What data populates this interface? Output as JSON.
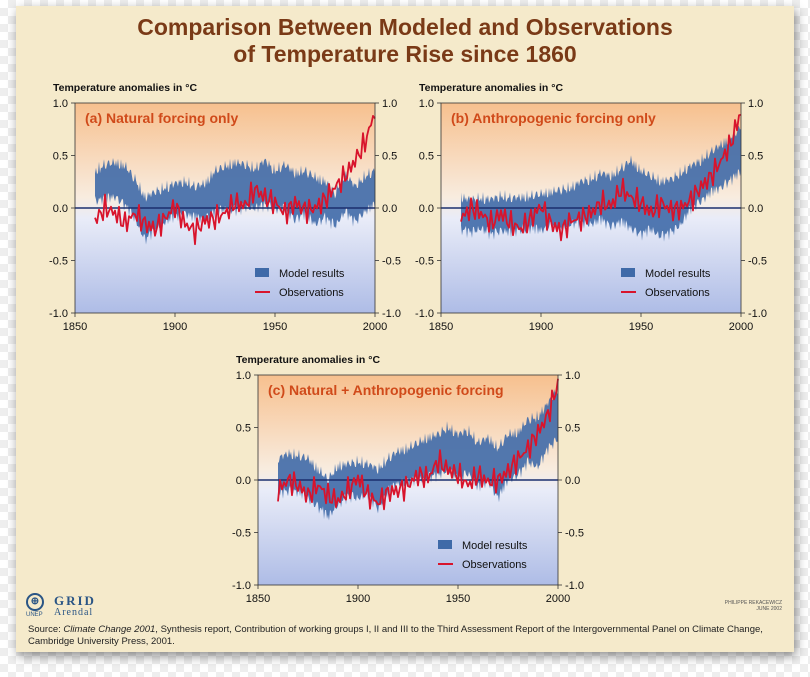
{
  "title_line1": "Comparison Between Modeled and Observations",
  "title_line2": "of Temperature Rise since 1860",
  "colors": {
    "card_bg": "#f5eacb",
    "title": "#7a3a17",
    "panel_title": "#d04a1a",
    "model": "#3f6aa8",
    "observations": "#d8142c",
    "zero_line": "#1b2f6e",
    "plot_top": "#f7c08e",
    "plot_bottom": "#aebce6"
  },
  "chart_data": [
    {
      "type": "area",
      "panel_title": "(a) Natural forcing only",
      "ylabel": "Temperature anomalies in °C",
      "xlim": [
        1850,
        2000
      ],
      "ylim": [
        -1.0,
        1.0
      ],
      "x_ticks": [
        "1850",
        "1900",
        "1950",
        "2000"
      ],
      "y_ticks": [
        "1.0",
        "0.5",
        "0.0",
        "-0.5",
        "-1.0"
      ],
      "legend": [
        "Model results",
        "Observations"
      ],
      "legend_position": "bottom-right",
      "series": [
        {
          "name": "Model results",
          "kind": "band",
          "x": [
            1860,
            1865,
            1870,
            1875,
            1880,
            1885,
            1890,
            1895,
            1900,
            1905,
            1910,
            1915,
            1920,
            1925,
            1930,
            1935,
            1940,
            1945,
            1950,
            1955,
            1960,
            1965,
            1970,
            1975,
            1980,
            1985,
            1990,
            1995,
            2000
          ],
          "lower": [
            0.12,
            0.14,
            0.16,
            0.08,
            -0.05,
            -0.25,
            -0.15,
            -0.08,
            -0.02,
            0.0,
            -0.04,
            -0.05,
            0.02,
            0.04,
            0.03,
            0.06,
            0.05,
            0.08,
            0.04,
            0.05,
            -0.06,
            0.0,
            -0.1,
            -0.04,
            -0.12,
            0.02,
            -0.08,
            0.02,
            0.08
          ],
          "upper": [
            0.3,
            0.36,
            0.38,
            0.35,
            0.22,
            0.05,
            0.1,
            0.14,
            0.18,
            0.2,
            0.15,
            0.18,
            0.3,
            0.34,
            0.38,
            0.36,
            0.32,
            0.4,
            0.3,
            0.36,
            0.28,
            0.3,
            0.24,
            0.2,
            0.08,
            0.28,
            0.15,
            0.25,
            0.3
          ]
        },
        {
          "name": "Observations",
          "kind": "line",
          "x": [
            1860,
            1865,
            1870,
            1875,
            1880,
            1885,
            1890,
            1895,
            1900,
            1905,
            1910,
            1915,
            1920,
            1925,
            1930,
            1935,
            1940,
            1945,
            1950,
            1955,
            1960,
            1965,
            1970,
            1975,
            1980,
            1985,
            1990,
            1995,
            2000
          ],
          "y": [
            -0.12,
            0.0,
            -0.05,
            -0.15,
            -0.05,
            -0.15,
            -0.2,
            -0.1,
            0.02,
            -0.15,
            -0.22,
            -0.12,
            -0.1,
            -0.05,
            0.05,
            0.02,
            0.18,
            0.1,
            0.05,
            -0.05,
            0.05,
            -0.02,
            0.0,
            0.08,
            0.2,
            0.3,
            0.45,
            0.62,
            0.92
          ]
        }
      ]
    },
    {
      "type": "area",
      "panel_title": "(b) Anthropogenic forcing only",
      "ylabel": "Temperature anomalies in °C",
      "xlim": [
        1850,
        2000
      ],
      "ylim": [
        -1.0,
        1.0
      ],
      "x_ticks": [
        "1850",
        "1900",
        "1950",
        "2000"
      ],
      "y_ticks": [
        "1.0",
        "0.5",
        "0.0",
        "-0.5",
        "-1.0"
      ],
      "legend": [
        "Model results",
        "Observations"
      ],
      "legend_position": "bottom-right",
      "series": [
        {
          "name": "Model results",
          "kind": "band",
          "x": [
            1860,
            1865,
            1870,
            1875,
            1880,
            1885,
            1890,
            1895,
            1900,
            1905,
            1910,
            1915,
            1920,
            1925,
            1930,
            1935,
            1940,
            1945,
            1950,
            1955,
            1960,
            1965,
            1970,
            1975,
            1980,
            1985,
            1990,
            1995,
            2000
          ],
          "lower": [
            -0.15,
            -0.18,
            -0.14,
            -0.2,
            -0.16,
            -0.18,
            -0.15,
            -0.14,
            -0.16,
            -0.12,
            -0.14,
            -0.1,
            -0.08,
            -0.1,
            -0.06,
            -0.12,
            -0.08,
            -0.14,
            -0.2,
            -0.15,
            -0.22,
            -0.18,
            -0.1,
            0.05,
            0.12,
            0.2,
            0.25,
            0.32,
            0.4
          ],
          "upper": [
            0.05,
            0.02,
            0.04,
            0.03,
            0.06,
            0.04,
            0.05,
            0.06,
            0.08,
            0.1,
            0.12,
            0.14,
            0.2,
            0.22,
            0.28,
            0.25,
            0.32,
            0.4,
            0.3,
            0.25,
            0.2,
            0.22,
            0.28,
            0.35,
            0.4,
            0.48,
            0.55,
            0.62,
            0.72
          ]
        },
        {
          "name": "Observations",
          "kind": "line",
          "x": [
            1860,
            1865,
            1870,
            1875,
            1880,
            1885,
            1890,
            1895,
            1900,
            1905,
            1910,
            1915,
            1920,
            1925,
            1930,
            1935,
            1940,
            1945,
            1950,
            1955,
            1960,
            1965,
            1970,
            1975,
            1980,
            1985,
            1990,
            1995,
            2000
          ],
          "y": [
            -0.1,
            0.0,
            -0.05,
            -0.15,
            -0.05,
            -0.15,
            -0.2,
            -0.1,
            0.02,
            -0.15,
            -0.22,
            -0.12,
            -0.1,
            -0.05,
            0.05,
            0.02,
            0.18,
            0.1,
            0.05,
            -0.05,
            0.05,
            -0.02,
            0.0,
            0.08,
            0.2,
            0.3,
            0.45,
            0.62,
            0.92
          ]
        }
      ]
    },
    {
      "type": "area",
      "panel_title": "(c) Natural + Anthropogenic forcing",
      "ylabel": "Temperature anomalies in °C",
      "xlim": [
        1850,
        2000
      ],
      "ylim": [
        -1.0,
        1.0
      ],
      "x_ticks": [
        "1850",
        "1900",
        "1950",
        "2000"
      ],
      "y_ticks": [
        "1.0",
        "0.5",
        "0.0",
        "-0.5",
        "-1.0"
      ],
      "legend": [
        "Model results",
        "Observations"
      ],
      "legend_position": "bottom-right",
      "series": [
        {
          "name": "Model results",
          "kind": "band",
          "x": [
            1860,
            1865,
            1870,
            1875,
            1880,
            1885,
            1890,
            1895,
            1900,
            1905,
            1910,
            1915,
            1920,
            1925,
            1930,
            1935,
            1940,
            1945,
            1950,
            1955,
            1960,
            1965,
            1970,
            1975,
            1980,
            1985,
            1990,
            1995,
            2000
          ],
          "lower": [
            -0.08,
            -0.05,
            -0.06,
            -0.12,
            -0.2,
            -0.3,
            -0.18,
            -0.1,
            -0.12,
            -0.08,
            -0.22,
            -0.05,
            0.02,
            0.04,
            0.05,
            0.08,
            0.1,
            0.15,
            0.06,
            0.12,
            -0.02,
            0.05,
            -0.12,
            0.05,
            0.1,
            0.22,
            0.18,
            0.35,
            0.45
          ],
          "upper": [
            0.15,
            0.2,
            0.18,
            0.15,
            0.05,
            -0.05,
            0.08,
            0.1,
            0.12,
            0.1,
            0.05,
            0.15,
            0.22,
            0.25,
            0.3,
            0.35,
            0.38,
            0.45,
            0.38,
            0.42,
            0.3,
            0.35,
            0.25,
            0.38,
            0.4,
            0.52,
            0.55,
            0.68,
            0.82
          ]
        },
        {
          "name": "Observations",
          "kind": "line",
          "x": [
            1860,
            1865,
            1870,
            1875,
            1880,
            1885,
            1890,
            1895,
            1900,
            1905,
            1910,
            1915,
            1920,
            1925,
            1930,
            1935,
            1940,
            1945,
            1950,
            1955,
            1960,
            1965,
            1970,
            1975,
            1980,
            1985,
            1990,
            1995,
            2000
          ],
          "y": [
            -0.1,
            0.0,
            -0.05,
            -0.15,
            -0.05,
            -0.15,
            -0.2,
            -0.1,
            0.02,
            -0.15,
            -0.22,
            -0.12,
            -0.1,
            -0.05,
            0.05,
            0.02,
            0.18,
            0.1,
            0.05,
            -0.05,
            0.05,
            -0.02,
            0.0,
            0.08,
            0.2,
            0.3,
            0.45,
            0.62,
            0.92
          ]
        }
      ]
    }
  ],
  "logos": {
    "unep_symbol": "⊕",
    "unep": "UNEP",
    "grid": "GRID",
    "arendal": "Arendal"
  },
  "credit_line1": "PHILIPPE REKACEWICZ",
  "credit_line2": "JUNE 2002",
  "source": {
    "prefix": "Source: ",
    "italic": "Climate Change 2001",
    "rest": ", Synthesis report, Contribution of working groups I, II and III to the Third Assessment Report of the Intergovernmental Panel on Climate Change, Cambridge University Press, 2001."
  }
}
